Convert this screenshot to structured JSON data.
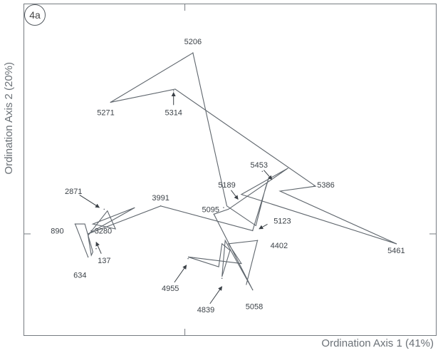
{
  "panel_label": "4a",
  "chart_data": {
    "type": "scatter",
    "title": "",
    "xlabel": "Ordination Axis 1 (41%)",
    "ylabel": "Ordination Axis 2 (20%)",
    "xlim": [
      -1.0,
      1.56
    ],
    "ylim": [
      -0.62,
      1.4
    ],
    "grid": false,
    "legend": "none",
    "connected": true,
    "colors": {
      "line": "#5f666d",
      "text": "#3c4248",
      "frame": "#777c82",
      "arrow": "#3a4046"
    },
    "points": [
      {
        "label": "634",
        "x": -0.6,
        "y": -0.14
      },
      {
        "label": "890",
        "x": -0.68,
        "y": 0.06
      },
      {
        "label": "2871",
        "x": -0.5,
        "y": 0.15
      },
      {
        "label": "137",
        "x": -0.55,
        "y": -0.09
      },
      {
        "label": "3280",
        "x": -0.58,
        "y": 0.02
      },
      {
        "label": "3991",
        "x": -0.15,
        "y": 0.17
      },
      {
        "label": "5271",
        "x": -0.46,
        "y": 0.8
      },
      {
        "label": "5206",
        "x": 0.05,
        "y": 1.1
      },
      {
        "label": "5314",
        "x": -0.07,
        "y": 0.87
      },
      {
        "label": "5386",
        "x": 0.8,
        "y": 0.29
      },
      {
        "label": "5189",
        "x": 0.24,
        "y": 0.16
      },
      {
        "label": "5453",
        "x": 0.48,
        "y": 0.38
      },
      {
        "label": "5123",
        "x": 0.42,
        "y": 0.02
      },
      {
        "label": "5095",
        "x": 0.18,
        "y": 0.12
      },
      {
        "label": "4402",
        "x": 0.45,
        "y": -0.04
      },
      {
        "label": "5058",
        "x": 0.42,
        "y": -0.34
      },
      {
        "label": "4839",
        "x": 0.23,
        "y": -0.27
      },
      {
        "label": "4955",
        "x": 0.02,
        "y": -0.15
      },
      {
        "label": "5461",
        "x": 1.31,
        "y": -0.06
      }
    ],
    "path": [
      {
        "x": -0.6,
        "y": -0.14
      },
      {
        "x": -0.68,
        "y": 0.06
      },
      {
        "x": -0.62,
        "y": 0.06
      },
      {
        "x": -0.57,
        "y": -0.11
      },
      {
        "x": -0.58,
        "y": -0.13
      },
      {
        "x": -0.6,
        "y": -0.01
      },
      {
        "x": -0.48,
        "y": 0.14
      },
      {
        "x": -0.43,
        "y": 0.03
      },
      {
        "x": -0.57,
        "y": 0.06
      },
      {
        "x": -0.31,
        "y": 0.16
      },
      {
        "x": -0.6,
        "y": 0.0
      },
      {
        "x": -0.15,
        "y": 0.17
      },
      {
        "x": 0.42,
        "y": 0.02
      },
      {
        "x": 0.52,
        "y": 0.34
      },
      {
        "x": 0.5,
        "y": 0.28
      },
      {
        "x": 0.44,
        "y": 0.05
      },
      {
        "x": 0.26,
        "y": 0.17
      },
      {
        "x": 0.05,
        "y": 1.1
      },
      {
        "x": -0.46,
        "y": 0.8
      },
      {
        "x": -0.06,
        "y": 0.88
      },
      {
        "x": 0.81,
        "y": 0.29
      },
      {
        "x": 0.59,
        "y": 0.26
      },
      {
        "x": 1.31,
        "y": -0.06
      },
      {
        "x": 0.35,
        "y": 0.24
      },
      {
        "x": 0.64,
        "y": 0.4
      },
      {
        "x": 0.27,
        "y": 0.15
      },
      {
        "x": 0.18,
        "y": 0.12
      },
      {
        "x": 0.42,
        "y": -0.34
      },
      {
        "x": 0.25,
        "y": -0.04
      },
      {
        "x": 0.23,
        "y": -0.26
      },
      {
        "x": 0.28,
        "y": -0.1
      },
      {
        "x": 0.23,
        "y": -0.06
      },
      {
        "x": 0.21,
        "y": -0.2
      },
      {
        "x": 0.02,
        "y": -0.14
      },
      {
        "x": 0.35,
        "y": -0.18
      },
      {
        "x": 0.27,
        "y": -0.06
      },
      {
        "x": 0.45,
        "y": -0.04
      },
      {
        "x": 0.38,
        "y": -0.31
      }
    ],
    "labels": [
      {
        "text": "5206",
        "x": 0.05,
        "y": 1.17,
        "anchor": "middle"
      },
      {
        "text": "5271",
        "x": -0.49,
        "y": 0.74,
        "anchor": "middle"
      },
      {
        "text": "5314",
        "x": -0.07,
        "y": 0.74,
        "anchor": "middle",
        "arrow_to": {
          "x": -0.07,
          "y": 0.86
        }
      },
      {
        "text": "5453",
        "x": 0.46,
        "y": 0.42,
        "anchor": "middle",
        "arrow_to": {
          "x": 0.54,
          "y": 0.33
        }
      },
      {
        "text": "5386",
        "x": 0.82,
        "y": 0.3,
        "anchor": "start"
      },
      {
        "text": "5189",
        "x": 0.26,
        "y": 0.3,
        "anchor": "middle",
        "arrow_to": {
          "x": 0.33,
          "y": 0.21
        }
      },
      {
        "text": "5095",
        "x": 0.16,
        "y": 0.15,
        "anchor": "middle"
      },
      {
        "text": "5123",
        "x": 0.55,
        "y": 0.08,
        "anchor": "start",
        "arrow_to": {
          "x": 0.46,
          "y": 0.03
        }
      },
      {
        "text": "5461",
        "x": 1.31,
        "y": -0.1,
        "anchor": "middle"
      },
      {
        "text": "4402",
        "x": 0.53,
        "y": -0.07,
        "anchor": "start"
      },
      {
        "text": "3991",
        "x": -0.15,
        "y": 0.22,
        "anchor": "middle"
      },
      {
        "text": "2871",
        "x": -0.69,
        "y": 0.26,
        "anchor": "middle",
        "arrow_to": {
          "x": -0.53,
          "y": 0.16
        }
      },
      {
        "text": "3280",
        "x": -0.56,
        "y": 0.02,
        "anchor": "start"
      },
      {
        "text": "890",
        "x": -0.75,
        "y": 0.02,
        "anchor": "end"
      },
      {
        "text": "137",
        "x": -0.5,
        "y": -0.16,
        "anchor": "middle",
        "arrow_to": {
          "x": -0.55,
          "y": -0.05
        }
      },
      {
        "text": "634",
        "x": -0.65,
        "y": -0.25,
        "anchor": "middle"
      },
      {
        "text": "4955",
        "x": -0.09,
        "y": -0.33,
        "anchor": "middle",
        "arrow_to": {
          "x": 0.01,
          "y": -0.19
        }
      },
      {
        "text": "4839",
        "x": 0.13,
        "y": -0.46,
        "anchor": "middle",
        "arrow_to": {
          "x": 0.23,
          "y": -0.32
        }
      },
      {
        "text": "5058",
        "x": 0.43,
        "y": -0.44,
        "anchor": "middle"
      }
    ]
  }
}
